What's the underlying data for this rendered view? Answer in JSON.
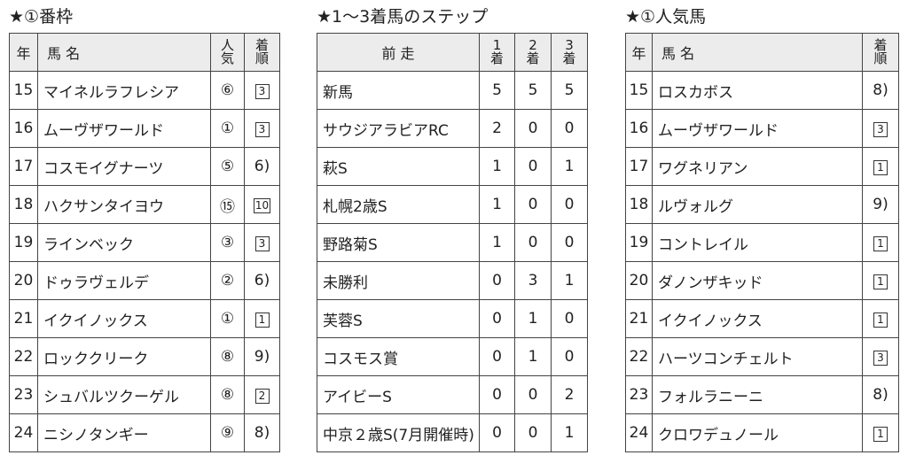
{
  "tables": [
    {
      "title": "★①番枠",
      "columns": [
        "年",
        "馬 名",
        "人気",
        "着順"
      ],
      "rows": [
        [
          15,
          "マイネルラフレシア",
          "⑥",
          {
            "text": "3",
            "boxed": true
          }
        ],
        [
          16,
          "ムーヴザワールド",
          "①",
          {
            "text": "3",
            "boxed": true
          }
        ],
        [
          17,
          "コスモイグナーツ",
          "⑤",
          "6)"
        ],
        [
          18,
          "ハクサンタイヨウ",
          "⑮",
          {
            "text": "10",
            "boxed": true
          }
        ],
        [
          19,
          "ラインベック",
          "③",
          {
            "text": "3",
            "boxed": true
          }
        ],
        [
          20,
          "ドゥラヴェルデ",
          "②",
          "6)"
        ],
        [
          21,
          "イクイノックス",
          "①",
          {
            "text": "1",
            "boxed": true
          }
        ],
        [
          22,
          "ロッククリーク",
          "⑧",
          "9)"
        ],
        [
          23,
          "シュバルツクーゲル",
          "⑧",
          {
            "text": "2",
            "boxed": true
          }
        ],
        [
          24,
          "ニシノタンギー",
          "⑨",
          "8)"
        ]
      ]
    },
    {
      "title": "★1〜3着馬のステップ",
      "columns": [
        "前 走",
        "1着",
        "2着",
        "3着"
      ],
      "rows": [
        [
          "新馬",
          5,
          5,
          5
        ],
        [
          "サウジアラビアRC",
          2,
          0,
          0
        ],
        [
          "萩S",
          1,
          0,
          1
        ],
        [
          "札幌2歳S",
          1,
          0,
          0
        ],
        [
          "野路菊S",
          1,
          0,
          0
        ],
        [
          "未勝利",
          0,
          3,
          1
        ],
        [
          "芙蓉S",
          0,
          1,
          0
        ],
        [
          "コスモス賞",
          0,
          1,
          0
        ],
        [
          "アイビーS",
          0,
          0,
          2
        ],
        [
          "中京２歳S(7月開催時)",
          0,
          0,
          1
        ]
      ]
    },
    {
      "title": "★①人気馬",
      "columns": [
        "年",
        "馬 名",
        "着順"
      ],
      "rows": [
        [
          15,
          "ロスカボス",
          "8)"
        ],
        [
          16,
          "ムーヴザワールド",
          {
            "text": "3",
            "boxed": true
          }
        ],
        [
          17,
          "ワグネリアン",
          {
            "text": "1",
            "boxed": true
          }
        ],
        [
          18,
          "ルヴォルグ",
          "9)"
        ],
        [
          19,
          "コントレイル",
          {
            "text": "1",
            "boxed": true
          }
        ],
        [
          20,
          "ダノンザキッド",
          {
            "text": "1",
            "boxed": true
          }
        ],
        [
          21,
          "イクイノックス",
          {
            "text": "1",
            "boxed": true
          }
        ],
        [
          22,
          "ハーツコンチェルト",
          {
            "text": "3",
            "boxed": true
          }
        ],
        [
          23,
          "フォルラニーニ",
          "8)"
        ],
        [
          24,
          "クロワデュノール",
          {
            "text": "1",
            "boxed": true
          }
        ]
      ]
    }
  ]
}
